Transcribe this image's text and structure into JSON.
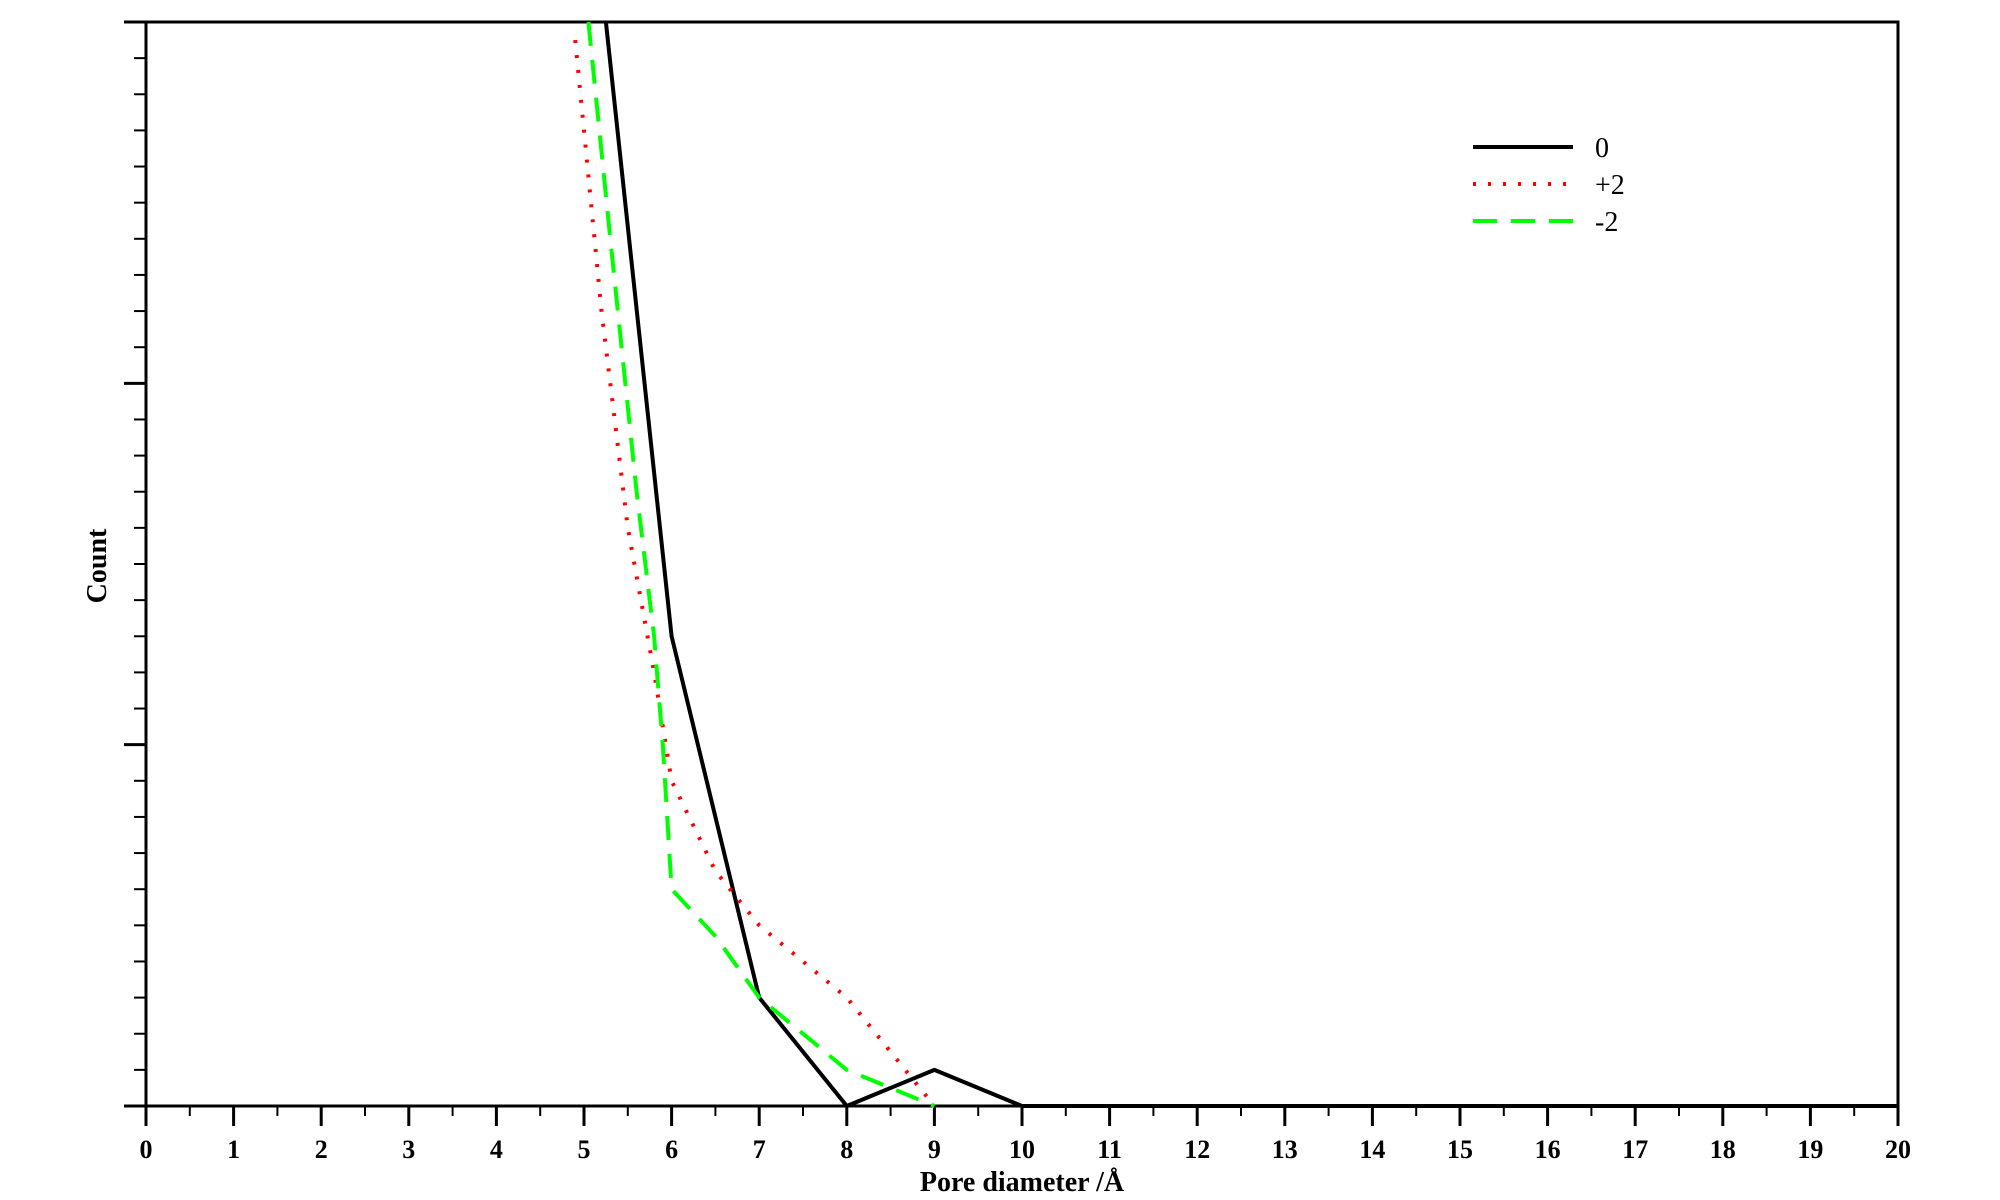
{
  "chart_data": {
    "type": "line",
    "title": "",
    "xlabel": "Pore diameter /Å",
    "ylabel": "Count",
    "xlim": [
      0,
      20
    ],
    "ylim": [
      0,
      30
    ],
    "x_ticks": [
      "0",
      "1",
      "2",
      "3",
      "4",
      "5",
      "6",
      "7",
      "8",
      "9",
      "10",
      "11",
      "12",
      "13",
      "14",
      "15",
      "16",
      "17",
      "18",
      "19",
      "20"
    ],
    "y_tick_labels": false,
    "grid": false,
    "legend_position": "top-right",
    "series": [
      {
        "name": "0",
        "color": "#000000",
        "dash": "solid",
        "x": [
          5.25,
          6,
          7,
          8,
          9,
          10,
          20
        ],
        "y": [
          30,
          13,
          3,
          0,
          1,
          0,
          0
        ]
      },
      {
        "name": "+2",
        "color": "#ff0000",
        "dash": "dotted",
        "x": [
          4.9,
          5.2,
          5.5,
          5.8,
          6,
          6.5,
          7,
          7.5,
          8,
          8.5,
          9
        ],
        "y": [
          29.5,
          22,
          16,
          12,
          9,
          6.5,
          5,
          4,
          3,
          1.5,
          0
        ]
      },
      {
        "name": "-2",
        "color": "#00ff00",
        "dash": "dashed",
        "x": [
          5.05,
          5.3,
          5.6,
          5.8,
          5.9,
          6,
          6.5,
          7,
          7.5,
          8,
          8.5,
          9
        ],
        "y": [
          30,
          24,
          17,
          13,
          10,
          6,
          4.7,
          3,
          2,
          1,
          0.5,
          0
        ]
      }
    ]
  }
}
